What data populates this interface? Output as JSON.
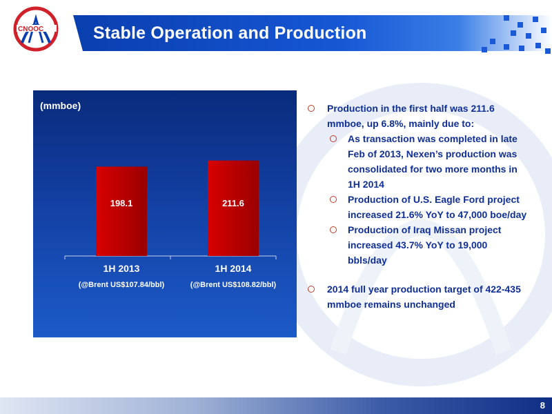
{
  "header": {
    "title": "Stable Operation and Production",
    "logo_icon": "cnooc-logo-icon"
  },
  "chart_data": {
    "type": "bar",
    "unit_label": "(mmboe)",
    "categories": [
      "1H 2013",
      "1H 2014"
    ],
    "sub_labels": [
      "(@Brent US$107.84/bbl)",
      "(@Brent US$108.82/bbl)"
    ],
    "values": [
      198.1,
      211.6
    ],
    "value_labels": [
      "198.1",
      "211.6"
    ],
    "ylim": [
      0,
      260
    ],
    "bar_color": "#c40000"
  },
  "bullets": [
    {
      "text": "Production in the first half was 211.6 mmboe, up 6.8%, mainly due to:",
      "children": [
        "As transaction was completed in late Feb of 2013, Nexen’s production was consolidated for two more months in 1H 2014",
        "Production of U.S. Eagle Ford project increased 21.6% YoY to 47,000 boe/day",
        "Production of Iraq Missan project increased 43.7% YoY to 19,000 bbls/day"
      ]
    },
    {
      "text": "2014 full year production target of 422-435 mmboe remains unchanged",
      "children": []
    }
  ],
  "footer": {
    "page_number": "8"
  },
  "colors": {
    "title_blue": "#0a3fb0",
    "bullet_text": "#0f2f95",
    "bullet_marker": "#c0392b"
  }
}
